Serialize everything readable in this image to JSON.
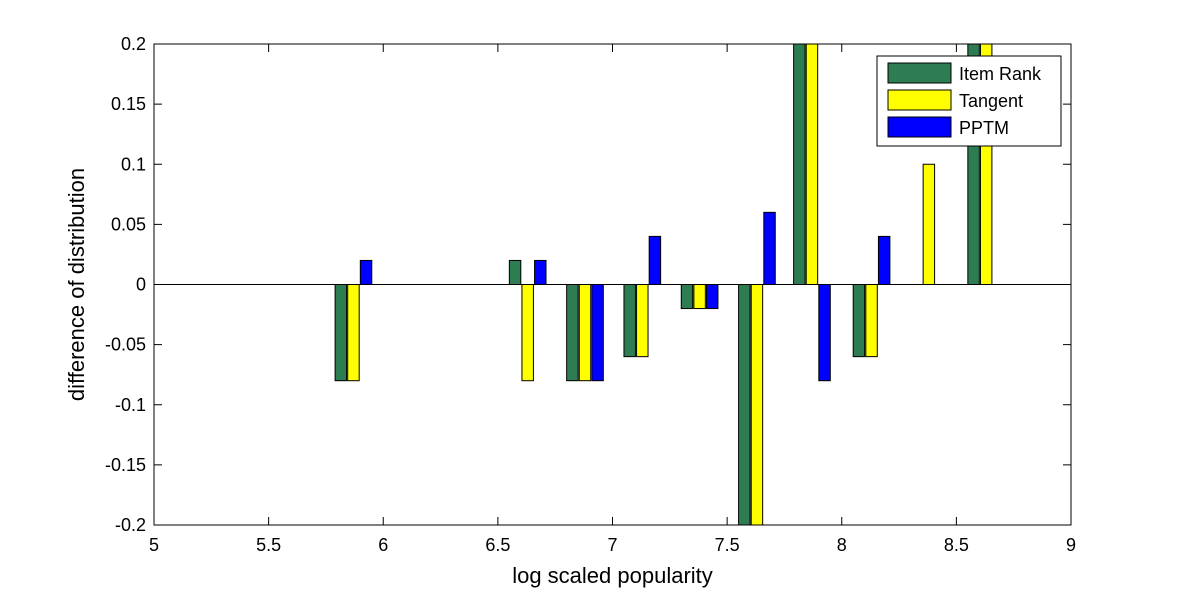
{
  "chart_data": {
    "type": "bar",
    "title": "",
    "xlabel": "log scaled popularity",
    "ylabel": "difference of distribution",
    "xlim": [
      5,
      9
    ],
    "ylim": [
      -0.2,
      0.2
    ],
    "xticks": [
      "5",
      "5.5",
      "6",
      "6.5",
      "7",
      "7.5",
      "8",
      "8.5",
      "9"
    ],
    "yticks": [
      "-0.2",
      "-0.15",
      "-0.1",
      "-0.05",
      "0",
      "0.05",
      "0.1",
      "0.15",
      "0.2"
    ],
    "grid": false,
    "legend_position": "top-right",
    "bar_width": 0.05,
    "group_offset": 0.055,
    "x": [
      5.87,
      6.63,
      6.88,
      7.13,
      7.38,
      7.63,
      7.87,
      8.13,
      8.38,
      8.63
    ],
    "series": [
      {
        "name": "Item Rank",
        "color": "#2e7d52",
        "values": [
          -0.08,
          0.02,
          -0.08,
          -0.06,
          -0.02,
          -0.2,
          0.2,
          -0.06,
          0,
          0.2
        ]
      },
      {
        "name": "Tangent",
        "color": "#ffff00",
        "values": [
          -0.08,
          -0.08,
          -0.08,
          -0.06,
          -0.02,
          -0.2,
          0.2,
          -0.06,
          0.1,
          0.2
        ]
      },
      {
        "name": "PPTM",
        "color": "#0000ff",
        "values": [
          0.02,
          0.02,
          -0.08,
          0.04,
          -0.02,
          0.06,
          -0.08,
          0.04,
          0,
          0
        ]
      }
    ]
  }
}
